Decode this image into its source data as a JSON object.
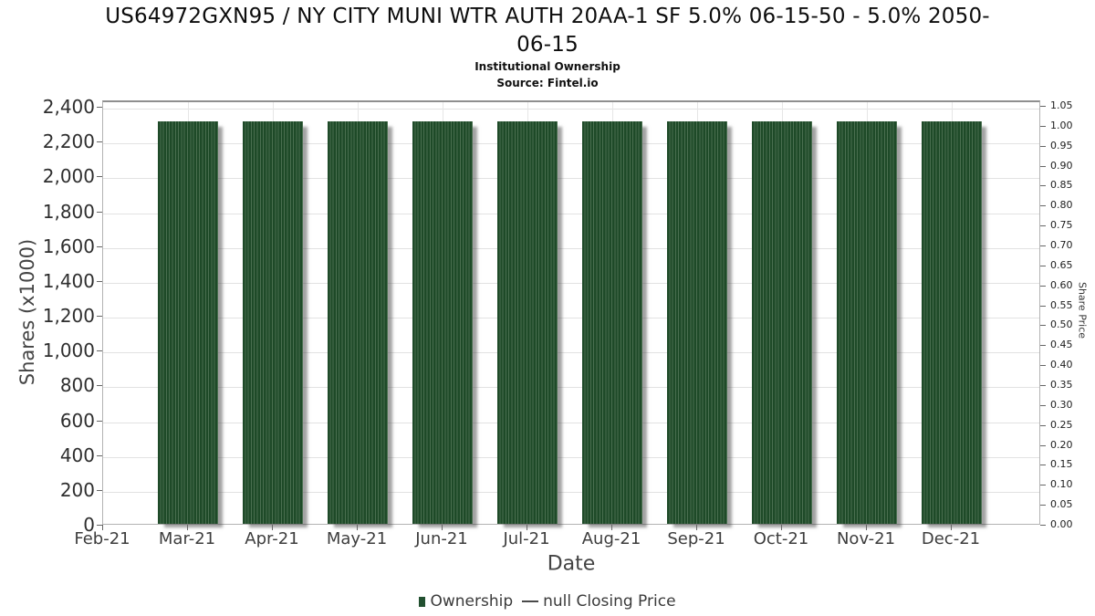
{
  "header": {
    "title_line1": "US64972GXN95 / NY CITY MUNI WTR AUTH 20AA-1 SF 5.0% 06-15-50 - 5.0% 2050-",
    "title_line2": "06-15",
    "subtitle": "Institutional Ownership",
    "source": "Source: Fintel.io"
  },
  "chart_data": {
    "type": "bar",
    "title": "Institutional Ownership",
    "xlabel": "Date",
    "ylabel_left": "Shares (x1000)",
    "ylabel_right": "Share Price",
    "categories": [
      "Feb-21",
      "Mar-21",
      "Apr-21",
      "May-21",
      "Jun-21",
      "Jul-21",
      "Aug-21",
      "Sep-21",
      "Oct-21",
      "Nov-21",
      "Dec-21"
    ],
    "series": [
      {
        "name": "Ownership",
        "color": "#1e4a28",
        "values": [
          null,
          2310,
          2310,
          2310,
          2310,
          2310,
          2310,
          2310,
          2310,
          2310,
          2310
        ]
      },
      {
        "name": "null Closing Price",
        "color": "#4a4a4a",
        "values": [
          null,
          null,
          null,
          null,
          null,
          null,
          null,
          null,
          null,
          null,
          null
        ]
      }
    ],
    "y_left": {
      "min": 0,
      "max": 2400,
      "step": 200,
      "tick_labels": [
        "0",
        "200",
        "400",
        "600",
        "800",
        "1,000",
        "1,200",
        "1,400",
        "1,600",
        "1,800",
        "2,000",
        "2,200",
        "2,400"
      ]
    },
    "y_right": {
      "min": 0,
      "max": 1.05,
      "step": 0.05,
      "tick_labels": [
        "0.00",
        "0.05",
        "0.10",
        "0.15",
        "0.20",
        "0.25",
        "0.30",
        "0.35",
        "0.40",
        "0.45",
        "0.50",
        "0.55",
        "0.60",
        "0.65",
        "0.70",
        "0.75",
        "0.80",
        "0.85",
        "0.90",
        "0.95",
        "1.00",
        "1.05"
      ]
    },
    "grid": true,
    "legend_position": "bottom",
    "legend": [
      {
        "label": "Ownership",
        "swatch": "square",
        "color": "#225030"
      },
      {
        "label": "null Closing Price",
        "swatch": "line",
        "color": "#4a4a4a"
      }
    ],
    "colors": {
      "bar": "#1e4a28",
      "bar_stripe": "#4a6f50",
      "grid": "#e2e2e2",
      "plot_border": "#b3b3b3"
    }
  }
}
